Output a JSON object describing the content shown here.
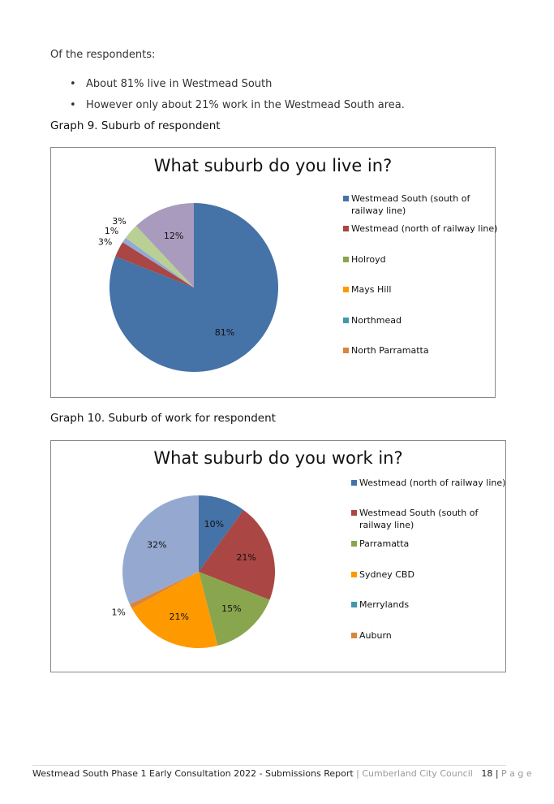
{
  "text": {
    "intro": "Of the respondents:",
    "bullets": [
      "About 81% live in Westmead South",
      "However only about 21% work in the Westmead South area."
    ],
    "graph9": "Graph 9. Suburb of respondent",
    "graph10": "Graph 10. Suburb of work for respondent",
    "footer": {
      "main": "Westmead South Phase 1 Early Consultation 2022 - Submissions Report",
      "org": "| Cumberland City Council",
      "page": "18 |",
      "page_word": "P a g e"
    }
  },
  "chart_data": [
    {
      "type": "pie",
      "title": "What suburb do you live in?",
      "categories": [
        "Westmead South (south of railway line)",
        "Westmead (north of railway line)",
        "Holroyd",
        "Mays Hill",
        "Northmead",
        "North Parramatta",
        null,
        null,
        null
      ],
      "values": [
        81,
        3,
        null,
        null,
        null,
        null,
        1,
        3,
        12
      ],
      "value_labels": [
        "81%",
        "3%",
        null,
        null,
        null,
        null,
        "1%",
        "3%",
        "12%"
      ],
      "colors": [
        "#4572a7",
        "#aa4643",
        "#89a54e",
        "#ff9900",
        "#4198af",
        "#db843d",
        "#93a9d6",
        "#b9d095",
        "#a99bbd"
      ]
    },
    {
      "type": "pie",
      "title": "What suburb do you work in?",
      "categories": [
        "Westmead (north of railway line)",
        "Westmead South (south of railway line)",
        "Parramatta",
        "Sydney CBD",
        "Merrylands",
        "Auburn",
        null
      ],
      "values": [
        10,
        21,
        15,
        21,
        null,
        1,
        32
      ],
      "value_labels": [
        "10%",
        "21%",
        "15%",
        "21%",
        null,
        "1%",
        "32%"
      ],
      "colors": [
        "#4572a7",
        "#aa4643",
        "#89a54e",
        "#ff9900",
        "#4198af",
        "#db843d",
        "#95a9d0"
      ]
    }
  ]
}
